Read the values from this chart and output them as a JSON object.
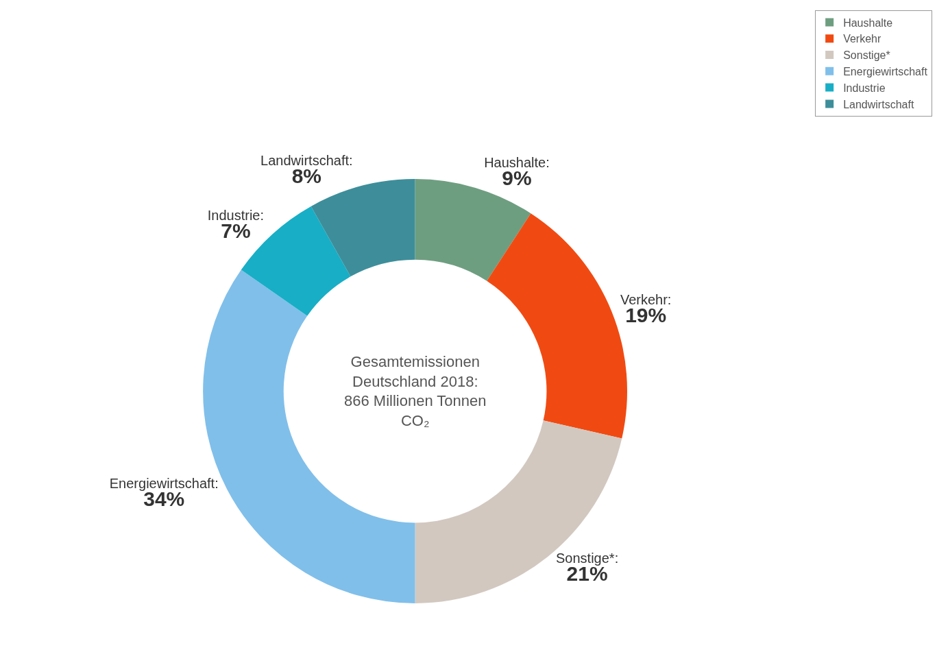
{
  "chart_data": {
    "type": "donut",
    "categories": [
      "Haushalte",
      "Verkehr",
      "Sonstige*",
      "Energiewirtschaft",
      "Industrie",
      "Landwirtschaft"
    ],
    "values": [
      9,
      19,
      21,
      34,
      7,
      8
    ],
    "colors": [
      "#6e9e80",
      "#f04a12",
      "#d2c8c0",
      "#80bfea",
      "#18aec6",
      "#3d8e9a"
    ],
    "value_labels": [
      "Haushalte:\n9%",
      "Verkehr:\n19%",
      "Sonstige*:\n21%",
      "Energiewirtschaft:\n34%",
      "Industrie:\n7%",
      "Landwirtschaft:\n8%"
    ],
    "legend": "top right",
    "annotations": [
      "Gesamtemissionen\nDeutschland 2018:\n866 Millionen Tonnen\nCO₂"
    ]
  }
}
